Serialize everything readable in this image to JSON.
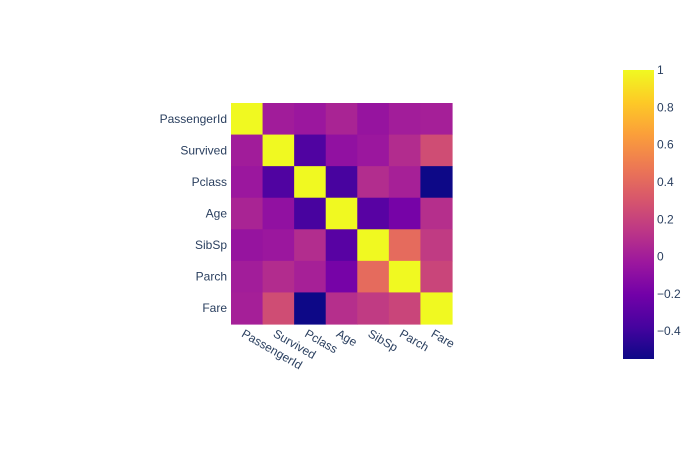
{
  "chart_data": {
    "type": "heatmap",
    "x_categories": [
      "PassengerId",
      "Survived",
      "Pclass",
      "Age",
      "SibSp",
      "Parch",
      "Fare"
    ],
    "y_categories": [
      "PassengerId",
      "Survived",
      "Pclass",
      "Age",
      "SibSp",
      "Parch",
      "Fare"
    ],
    "z": [
      [
        1.0,
        -0.005,
        -0.035,
        0.037,
        -0.058,
        -0.002,
        0.013
      ],
      [
        -0.005,
        1.0,
        -0.338,
        -0.077,
        -0.035,
        0.082,
        0.257
      ],
      [
        -0.035,
        -0.338,
        1.0,
        -0.369,
        0.083,
        0.018,
        -0.549
      ],
      [
        0.037,
        -0.077,
        -0.369,
        1.0,
        -0.308,
        -0.189,
        0.096
      ],
      [
        -0.058,
        -0.035,
        0.083,
        -0.308,
        1.0,
        0.415,
        0.16
      ],
      [
        -0.002,
        0.082,
        0.018,
        -0.189,
        0.415,
        1.0,
        0.216
      ],
      [
        0.013,
        0.257,
        -0.549,
        0.096,
        0.16,
        0.216,
        1.0
      ]
    ],
    "zmin": -0.549,
    "zmax": 1.0,
    "colorscale": "plasma",
    "colorbar_ticks": [
      1,
      0.8,
      0.6,
      0.4,
      0.2,
      0,
      -0.2,
      -0.4
    ],
    "colorbar_tick_labels": [
      "1",
      "0.8",
      "0.6",
      "0.4",
      "0.2",
      "0",
      "−0.2",
      "−0.4"
    ],
    "title": "",
    "xlabel": "",
    "ylabel": ""
  },
  "colors": {
    "plasma_stops": [
      "#0d0887",
      "#46039f",
      "#7201a8",
      "#9c179e",
      "#bd3786",
      "#d8576b",
      "#ed7953",
      "#fb9f3a",
      "#fdca26",
      "#f0f921"
    ],
    "tick_text": "#2a3f5f"
  }
}
